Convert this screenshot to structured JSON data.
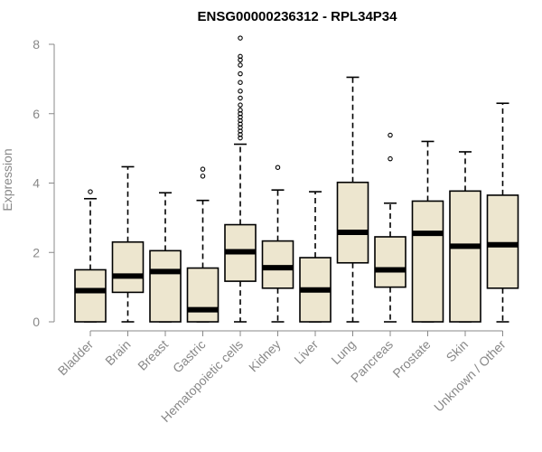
{
  "chart_data": {
    "type": "boxplot",
    "title": "ENSG00000236312 - RPL34P34",
    "xlabel": "",
    "ylabel": "Expression",
    "ylim": [
      0,
      8
    ],
    "yticks": [
      0,
      2,
      4,
      6,
      8
    ],
    "box_fill": "#ede6cf",
    "categories": [
      "Bladder",
      "Brain",
      "Breast",
      "Gastric",
      "Hematopoietic cells",
      "Kidney",
      "Liver",
      "Lung",
      "Pancreas",
      "Prostate",
      "Skin",
      "Unknown / Other"
    ],
    "boxes": [
      {
        "min": 0,
        "q1": 0,
        "median": 0.9,
        "q3": 1.5,
        "max": 3.55,
        "outliers": [
          3.75
        ]
      },
      {
        "min": 0,
        "q1": 0.85,
        "median": 1.32,
        "q3": 2.3,
        "max": 4.47,
        "outliers": []
      },
      {
        "min": 0,
        "q1": 0,
        "median": 1.45,
        "q3": 2.05,
        "max": 3.72,
        "outliers": []
      },
      {
        "min": 0,
        "q1": 0,
        "median": 0.35,
        "q3": 1.55,
        "max": 3.5,
        "outliers": [
          4.2,
          4.4
        ]
      },
      {
        "min": 0,
        "q1": 1.17,
        "median": 2.02,
        "q3": 2.8,
        "max": 5.12,
        "outliers": [
          5.3,
          5.4,
          5.5,
          5.6,
          5.7,
          5.8,
          5.9,
          6.0,
          6.1,
          6.25,
          6.45,
          6.65,
          6.9,
          7.15,
          7.4,
          7.55,
          7.65,
          8.18
        ]
      },
      {
        "min": 0,
        "q1": 0.97,
        "median": 1.56,
        "q3": 2.33,
        "max": 3.8,
        "outliers": [
          4.45
        ]
      },
      {
        "min": 0,
        "q1": 0,
        "median": 0.92,
        "q3": 1.85,
        "max": 3.75,
        "outliers": []
      },
      {
        "min": 0,
        "q1": 1.7,
        "median": 2.58,
        "q3": 4.02,
        "max": 7.05,
        "outliers": []
      },
      {
        "min": 0,
        "q1": 1.0,
        "median": 1.5,
        "q3": 2.45,
        "max": 3.42,
        "outliers": [
          4.7,
          5.38
        ]
      },
      {
        "min": 0,
        "q1": 0,
        "median": 2.55,
        "q3": 3.48,
        "max": 5.2,
        "outliers": []
      },
      {
        "min": 0,
        "q1": 0,
        "median": 2.18,
        "q3": 3.77,
        "max": 4.9,
        "outliers": []
      },
      {
        "min": 0,
        "q1": 0.97,
        "median": 2.22,
        "q3": 3.65,
        "max": 6.3,
        "outliers": []
      }
    ]
  }
}
